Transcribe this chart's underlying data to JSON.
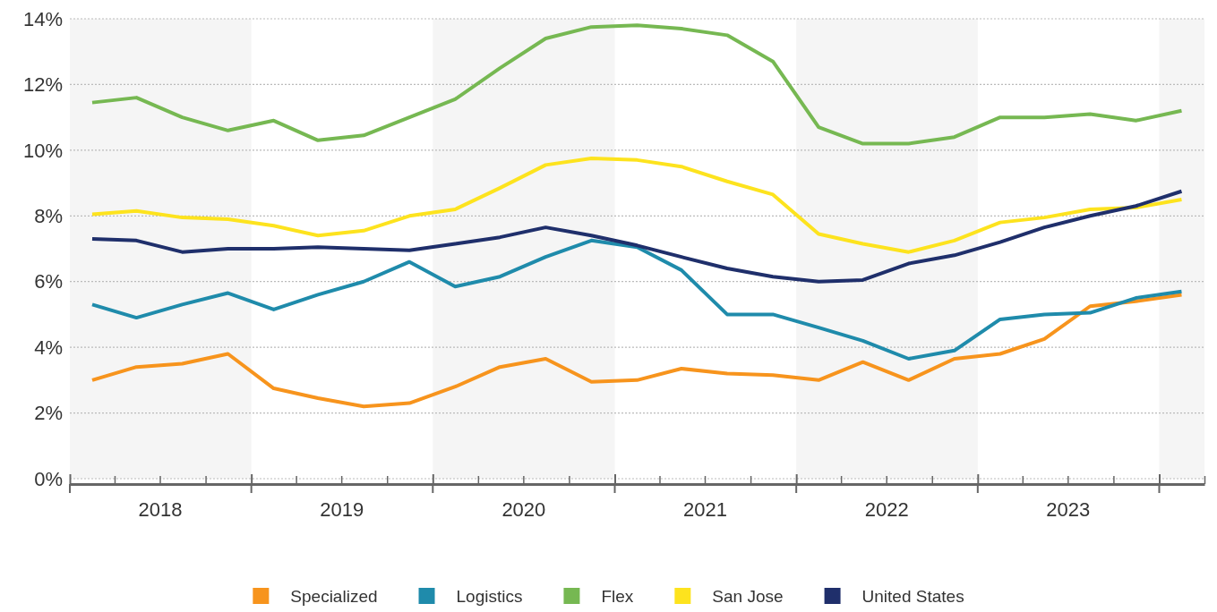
{
  "chart_data": {
    "type": "line",
    "x": [
      "2018-02-15",
      "2018-05-15",
      "2018-08-15",
      "2018-11-15",
      "2019-02-15",
      "2019-05-15",
      "2019-08-15",
      "2019-11-15",
      "2020-02-15",
      "2020-05-15",
      "2020-08-15",
      "2020-11-15",
      "2021-02-15",
      "2021-05-15",
      "2021-08-15",
      "2021-11-15",
      "2022-02-15",
      "2022-05-15",
      "2022-08-15",
      "2022-11-15",
      "2023-02-15",
      "2023-05-15",
      "2023-08-15",
      "2023-11-15",
      "2024-02-15"
    ],
    "series": [
      {
        "name": "Specialized",
        "color": "#f7941d",
        "values": [
          3.0,
          3.4,
          3.5,
          3.8,
          2.75,
          2.45,
          2.2,
          2.3,
          2.8,
          3.4,
          3.65,
          2.95,
          3.0,
          3.35,
          3.2,
          3.15,
          3.0,
          3.55,
          3.0,
          3.65,
          3.8,
          4.25,
          5.25,
          5.4,
          5.6
        ]
      },
      {
        "name": "Logistics",
        "color": "#1f8bab",
        "values": [
          5.3,
          4.9,
          5.3,
          5.65,
          5.15,
          5.6,
          6.0,
          6.6,
          5.85,
          6.15,
          6.75,
          7.25,
          7.05,
          6.35,
          5.0,
          5.0,
          4.6,
          4.2,
          3.65,
          3.9,
          4.85,
          5.0,
          5.05,
          5.5,
          5.7
        ]
      },
      {
        "name": "Flex",
        "color": "#76b852",
        "values": [
          11.45,
          11.6,
          11.0,
          10.6,
          10.9,
          10.3,
          10.45,
          11.0,
          11.55,
          12.5,
          13.4,
          13.75,
          13.8,
          13.7,
          13.5,
          12.7,
          10.7,
          10.2,
          10.2,
          10.4,
          11.0,
          11.0,
          11.1,
          10.9,
          11.2
        ]
      },
      {
        "name": "San Jose",
        "color": "#fde31e",
        "values": [
          8.05,
          8.15,
          7.95,
          7.9,
          7.7,
          7.4,
          7.55,
          8.0,
          8.2,
          8.85,
          9.55,
          9.75,
          9.7,
          9.5,
          9.05,
          8.65,
          7.45,
          7.15,
          6.9,
          7.25,
          7.8,
          7.95,
          8.2,
          8.25,
          8.5
        ]
      },
      {
        "name": "United States",
        "color": "#1f2f6b",
        "values": [
          7.3,
          7.25,
          6.9,
          7.0,
          7.0,
          7.05,
          7.0,
          6.95,
          7.15,
          7.35,
          7.65,
          7.4,
          7.1,
          6.75,
          6.4,
          6.15,
          6.0,
          6.05,
          6.55,
          6.8,
          7.2,
          7.65,
          8.0,
          8.3,
          8.75
        ]
      }
    ],
    "xlim": [
      "2018-01-01",
      "2024-04-01"
    ],
    "xticks": [
      {
        "value": "2018-01-01",
        "label": null
      },
      {
        "value": "2018-04-01",
        "label": null
      },
      {
        "value": "2018-07-01",
        "label": "2018"
      },
      {
        "value": "2018-10-01",
        "label": null
      },
      {
        "value": "2019-01-01",
        "label": null
      },
      {
        "value": "2019-04-01",
        "label": null
      },
      {
        "value": "2019-07-01",
        "label": "2019"
      },
      {
        "value": "2019-10-01",
        "label": null
      },
      {
        "value": "2020-01-01",
        "label": null
      },
      {
        "value": "2020-04-01",
        "label": null
      },
      {
        "value": "2020-07-01",
        "label": "2020"
      },
      {
        "value": "2020-10-01",
        "label": null
      },
      {
        "value": "2021-01-01",
        "label": null
      },
      {
        "value": "2021-04-01",
        "label": null
      },
      {
        "value": "2021-07-01",
        "label": "2021"
      },
      {
        "value": "2021-10-01",
        "label": null
      },
      {
        "value": "2022-01-01",
        "label": null
      },
      {
        "value": "2022-04-01",
        "label": null
      },
      {
        "value": "2022-07-01",
        "label": "2022"
      },
      {
        "value": "2022-10-01",
        "label": null
      },
      {
        "value": "2023-01-01",
        "label": null
      },
      {
        "value": "2023-04-01",
        "label": null
      },
      {
        "value": "2023-07-01",
        "label": "2023"
      },
      {
        "value": "2023-10-01",
        "label": null
      },
      {
        "value": "2024-01-01",
        "label": null
      },
      {
        "value": "2024-04-01",
        "label": null
      }
    ],
    "ylim": [
      0,
      14
    ],
    "yticks": [
      {
        "value": 0,
        "label": "0%"
      },
      {
        "value": 2,
        "label": "2%"
      },
      {
        "value": 4,
        "label": "4%"
      },
      {
        "value": 6,
        "label": "6%"
      },
      {
        "value": 8,
        "label": "8%"
      },
      {
        "value": 10,
        "label": "10%"
      },
      {
        "value": 12,
        "label": "12%"
      },
      {
        "value": 14,
        "label": "14%"
      }
    ],
    "bands": [
      {
        "axis": "x",
        "from": "2018-01-01",
        "to": "2019-01-01",
        "color": "#f5f5f5"
      },
      {
        "axis": "x",
        "from": "2020-01-01",
        "to": "2021-01-01",
        "color": "#f5f5f5"
      },
      {
        "axis": "x",
        "from": "2022-01-01",
        "to": "2023-01-01",
        "color": "#f5f5f5"
      },
      {
        "axis": "x",
        "from": "2024-01-01",
        "to": "2024-04-01",
        "color": "#f5f5f5"
      }
    ],
    "grid": "y",
    "legend": "bottom",
    "marker": "none",
    "line_style": "solid"
  }
}
